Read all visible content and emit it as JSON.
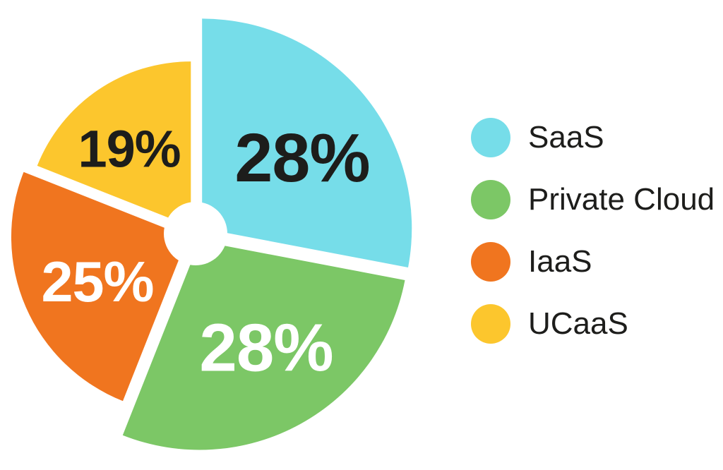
{
  "background": "#ffffff",
  "chart_data": {
    "type": "pie",
    "title": "",
    "donut": true,
    "start_angle_deg": 0,
    "direction": "clockwise",
    "legend_position": "right",
    "exploded": true,
    "slices": [
      {
        "label": "SaaS",
        "value": 28,
        "percent_label": "28%",
        "color": "#76DDE9",
        "percent_text_color": "#1d1d1b"
      },
      {
        "label": "Private Cloud",
        "value": 28,
        "percent_label": "28%",
        "color": "#7CC766",
        "percent_text_color": "#ffffff"
      },
      {
        "label": "IaaS",
        "value": 25,
        "percent_label": "25%",
        "color": "#F0751F",
        "percent_text_color": "#ffffff"
      },
      {
        "label": "UCaaS",
        "value": 19,
        "percent_label": "19%",
        "color": "#FCC62D",
        "percent_text_color": "#1d1d1b"
      }
    ],
    "legend_text_color": "#1d1d1b"
  }
}
